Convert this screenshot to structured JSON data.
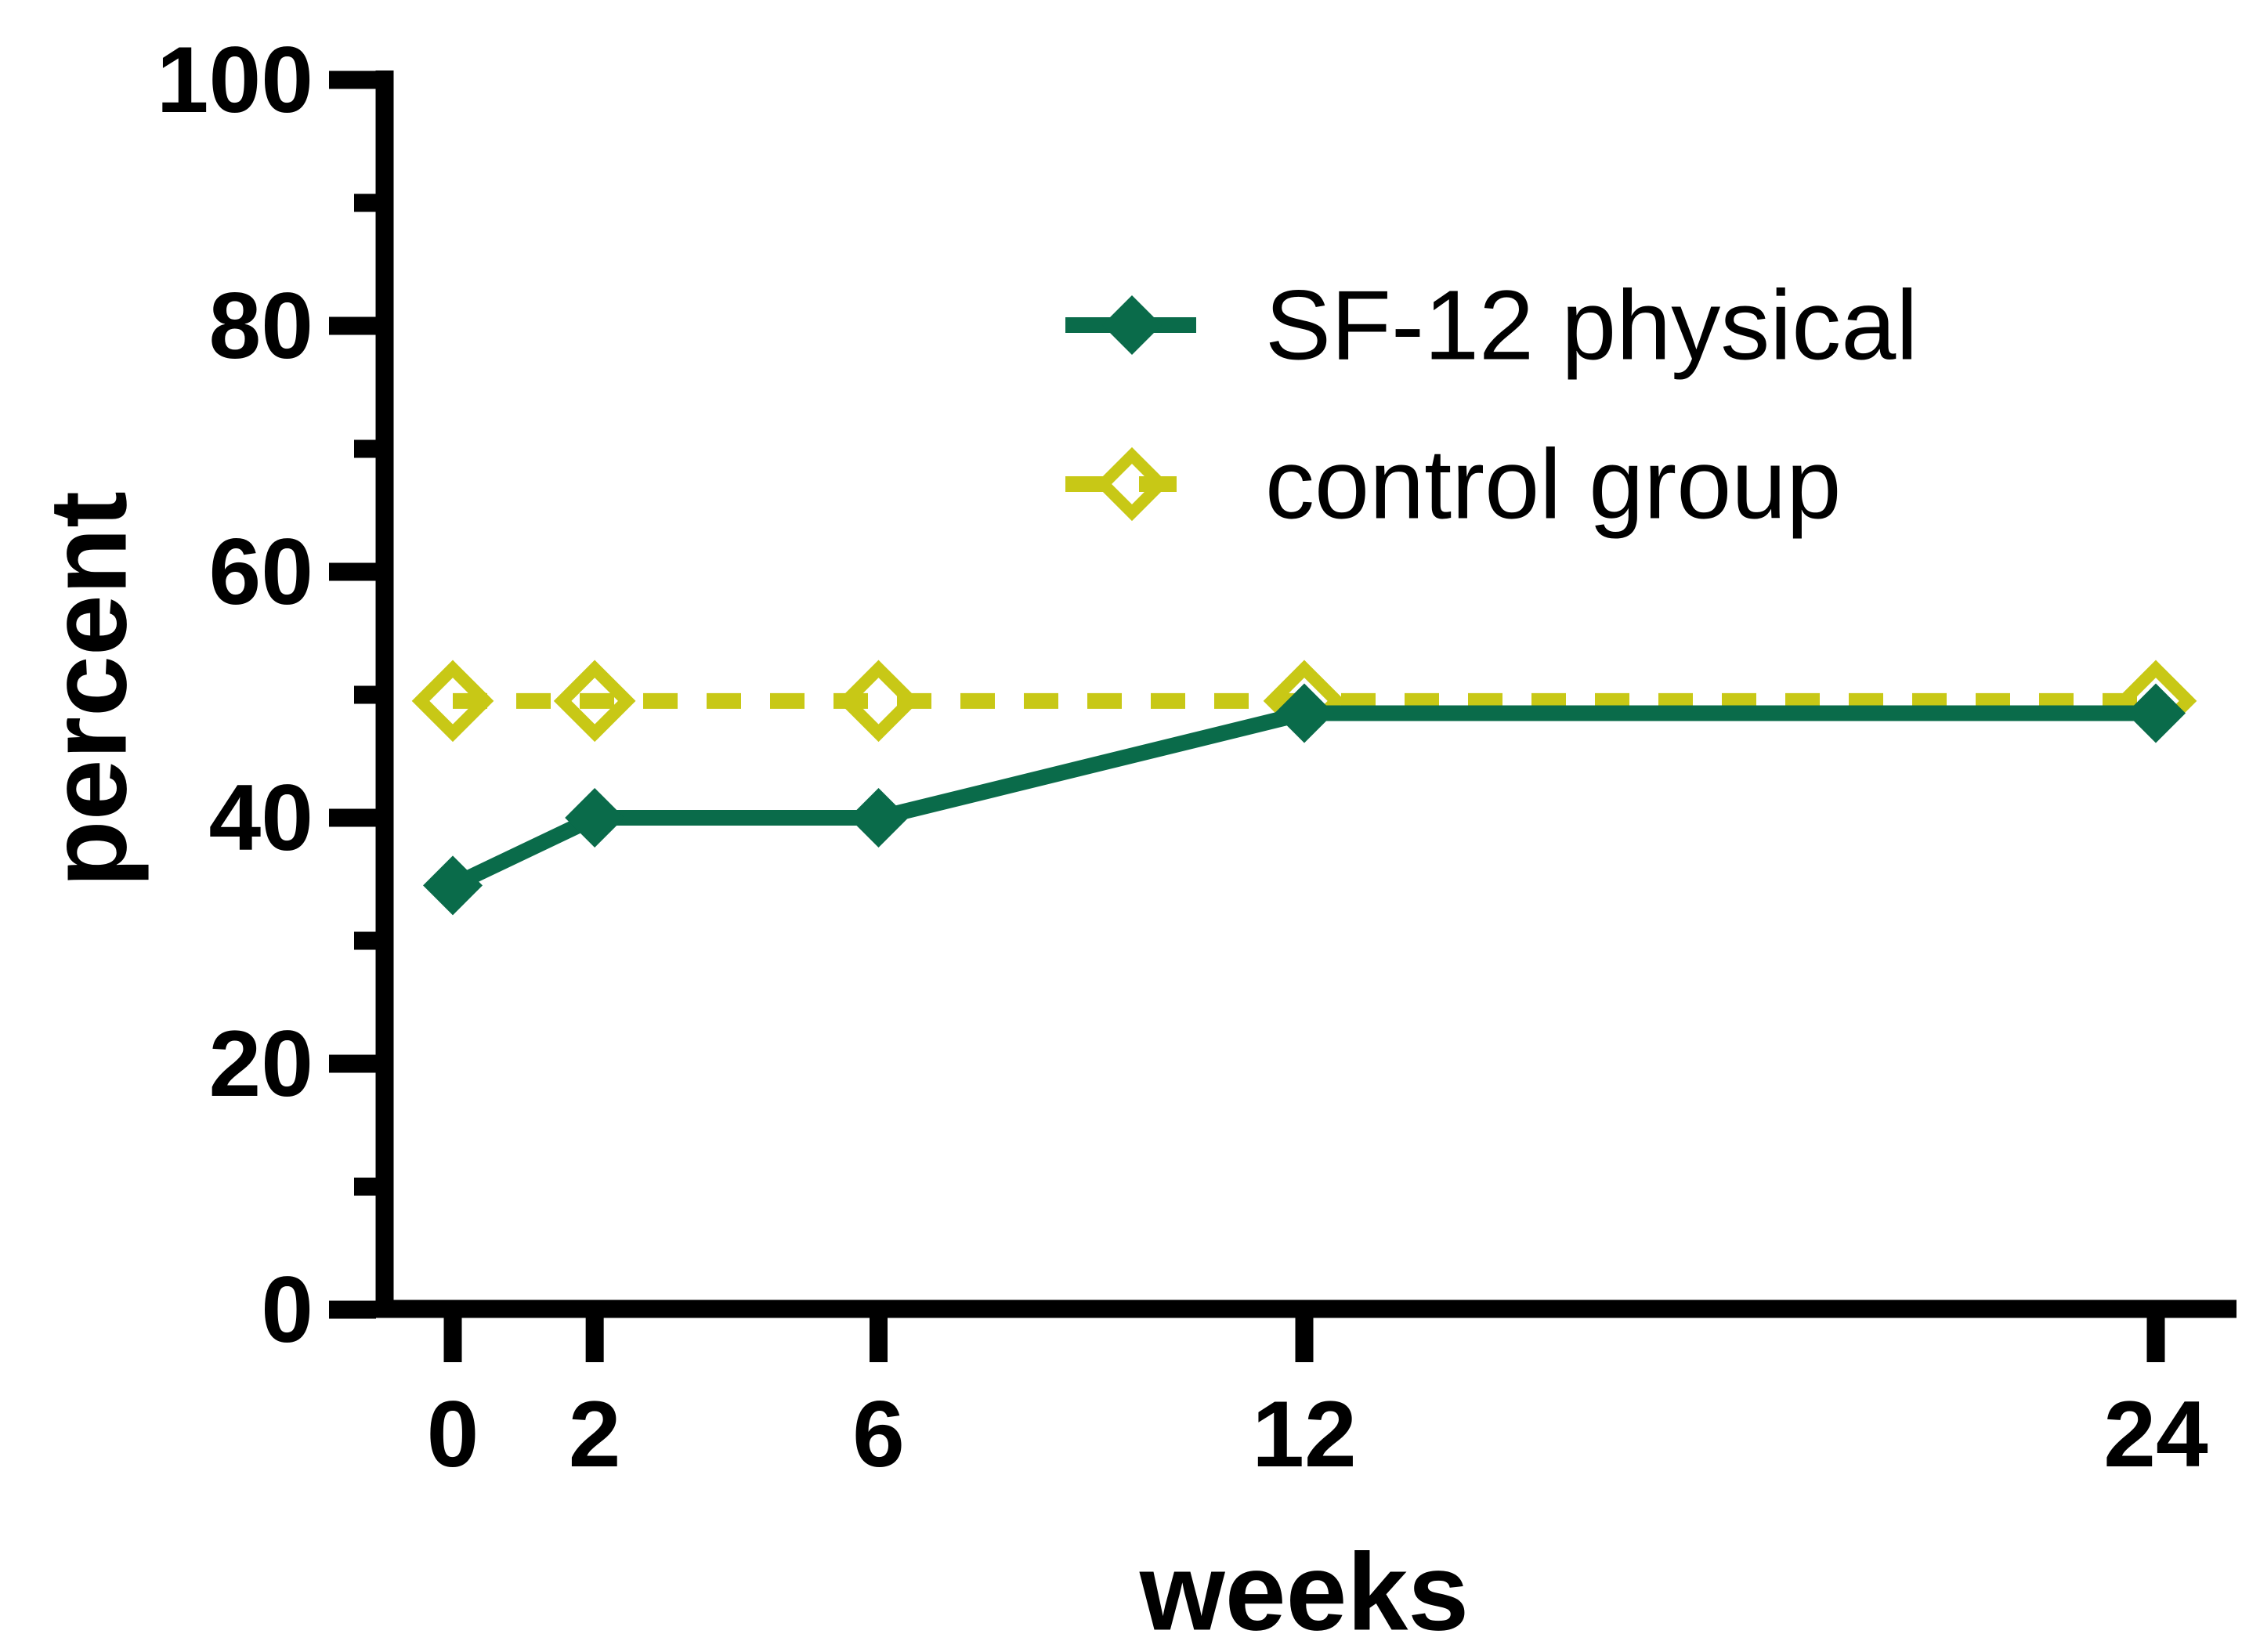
{
  "figure": {
    "background": "#ffffff",
    "axis_color": "#000000",
    "text_color": "#000000"
  },
  "chart_data": {
    "type": "line",
    "title": "",
    "xlabel": "weeks",
    "ylabel": "percent",
    "x": [
      0,
      2,
      6,
      12,
      24
    ],
    "xticks": [
      0,
      2,
      6,
      12,
      24
    ],
    "xtick_labels": [
      "0",
      "2",
      "6",
      "12",
      "24"
    ],
    "ylim": [
      0,
      100
    ],
    "xlim": [
      0,
      24
    ],
    "yticks_major": [
      0,
      20,
      40,
      60,
      80,
      100
    ],
    "ytick_labels": [
      "0",
      "20",
      "40",
      "60",
      "80",
      "100"
    ],
    "yticks_minor": [
      10,
      30,
      50,
      70,
      90
    ],
    "grid": false,
    "legend_position": "inside-upper-right",
    "series": [
      {
        "name": "SF-12 physical",
        "color": "#0a6b4a",
        "line_style": "solid",
        "marker": "filled-diamond",
        "values": [
          34.5,
          40,
          40,
          48.5,
          48.5
        ]
      },
      {
        "name": "control group",
        "color": "#c8c816",
        "line_style": "dashed",
        "marker": "open-diamond",
        "values": [
          49.5,
          49.5,
          49.5,
          49.5,
          49.5
        ]
      }
    ]
  }
}
